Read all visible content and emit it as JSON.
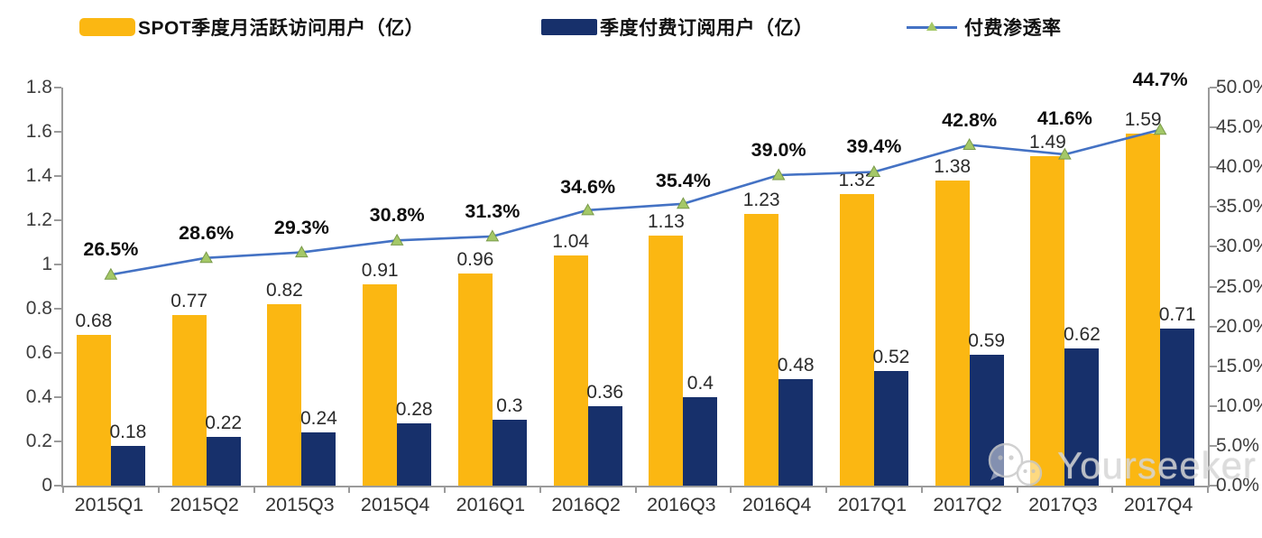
{
  "chart_data": {
    "type": "bar+line",
    "title": "",
    "categories": [
      "2015Q1",
      "2015Q2",
      "2015Q3",
      "2015Q4",
      "2016Q1",
      "2016Q2",
      "2016Q3",
      "2016Q4",
      "2017Q1",
      "2017Q2",
      "2017Q3",
      "2017Q4"
    ],
    "series": [
      {
        "name": "SPOT季度月活跃访问用户（亿）",
        "type": "bar",
        "axis": "left",
        "color": "#FBB712",
        "values": [
          0.68,
          0.77,
          0.82,
          0.91,
          0.96,
          1.04,
          1.13,
          1.23,
          1.32,
          1.38,
          1.49,
          1.59
        ],
        "labels": [
          "0.68",
          "0.77",
          "0.82",
          "0.91",
          "0.96",
          "1.04",
          "1.13",
          "1.23",
          "1.32",
          "1.38",
          "1.49",
          "1.59"
        ]
      },
      {
        "name": "季度付费订阅用户（亿）",
        "type": "bar",
        "axis": "left",
        "color": "#17306B",
        "values": [
          0.18,
          0.22,
          0.24,
          0.28,
          0.3,
          0.36,
          0.4,
          0.48,
          0.52,
          0.59,
          0.62,
          0.71
        ],
        "labels": [
          "0.18",
          "0.22",
          "0.24",
          "0.28",
          "0.3",
          "0.36",
          "0.4",
          "0.48",
          "0.52",
          "0.59",
          "0.62",
          "0.71"
        ]
      },
      {
        "name": "付费渗透率",
        "type": "line",
        "axis": "right",
        "color": "#4472C4",
        "marker": "triangle",
        "marker_fill": "#A4C867",
        "marker_stroke": "#7A9A4B",
        "values": [
          26.5,
          28.6,
          29.3,
          30.8,
          31.3,
          34.6,
          35.4,
          39.0,
          39.4,
          42.8,
          41.6,
          44.7
        ],
        "labels": [
          "26.5%",
          "28.6%",
          "29.3%",
          "30.8%",
          "31.3%",
          "34.6%",
          "35.4%",
          "39.0%",
          "39.4%",
          "42.8%",
          "41.6%",
          "44.7%"
        ],
        "label_gaps": [
          16,
          16,
          16,
          16,
          16,
          14,
          14,
          16,
          16,
          16,
          28,
          44
        ]
      }
    ],
    "left_axis": {
      "min": 0,
      "max": 1.8,
      "ticks": [
        "1.8",
        "1.6",
        "1.4",
        "1.2",
        "1",
        "0.8",
        "0.6",
        "0.4",
        "0.2",
        "0"
      ]
    },
    "right_axis": {
      "min": 0,
      "max": 50,
      "ticks": [
        "50.0%",
        "45.0%",
        "40.0%",
        "35.0%",
        "30.0%",
        "25.0%",
        "20.0%",
        "15.0%",
        "10.0%",
        "5.0%",
        "0.0%"
      ]
    },
    "grid": false,
    "legend_position": "top",
    "axis_color": "#9b9b9b"
  },
  "watermark": {
    "text": "Yourseeker",
    "icon": "wechat-icon"
  }
}
